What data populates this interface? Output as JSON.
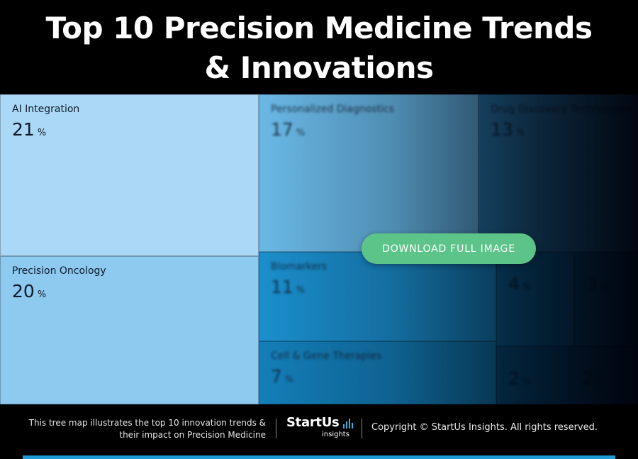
{
  "title_line1": "Top 10 Precision Medicine Trends",
  "title_line2": "& Innovations",
  "chart_data": {
    "type": "treemap",
    "title": "Top 10 Precision Medicine Trends & Innovations",
    "unit": "%",
    "items": [
      {
        "label": "AI Integration",
        "value": 21,
        "color": "#abd8f6"
      },
      {
        "label": "Precision Oncology",
        "value": 20,
        "color": "#8ec9f0"
      },
      {
        "label": "Personalized Diagnostics",
        "value": 17,
        "color": "#6ab9e6"
      },
      {
        "label": "Drug Discovery Technologies",
        "value": 13,
        "color": "#2e83b6"
      },
      {
        "label": "Biomarkers",
        "value": 11,
        "color": "#1b8fcd"
      },
      {
        "label": "Cell & Gene Therapies",
        "value": 7,
        "color": "#147fb9"
      },
      {
        "label": "",
        "value": 4,
        "color": "#0e6aa0"
      },
      {
        "label": "",
        "value": 3,
        "color": "#0c5c8c"
      },
      {
        "label": "",
        "value": 2,
        "color": "#0b5683"
      },
      {
        "label": "",
        "value": 2,
        "color": "#0a4d77"
      }
    ]
  },
  "cta": {
    "download_label": "DOWNLOAD FULL IMAGE"
  },
  "footer": {
    "description_line1": "This tree map illustrates the top 10 innovation trends &",
    "description_line2": "their impact on Precision Medicine",
    "logo_main": "StartUs",
    "logo_sub": "insights",
    "copyright": "Copyright © StartUs Insights. All rights reserved."
  },
  "colors": {
    "accent": "#1e9ad6",
    "button": "#5cc488"
  }
}
